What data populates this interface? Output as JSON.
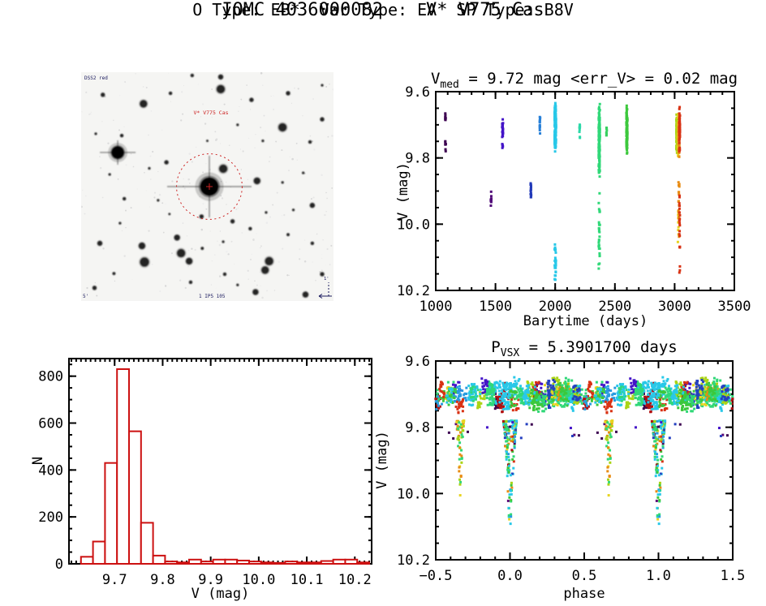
{
  "page": {
    "title": "IOMC 4036000082    V* V775 Cas",
    "subtitle": "O Type: EB*  Var Type: EA  SP Type: B8V"
  },
  "colors": {
    "axis": "#000000",
    "background": "#ffffff",
    "histogram_red": "#cc1111",
    "finder_circle_red": "#cc2222",
    "finder_navy": "#1a1a5e"
  },
  "chart_data": [
    {
      "id": "finding_chart",
      "type": "starfield-image",
      "label_survey": "DSS2 red",
      "label_target": "V* V775 Cas",
      "label_bottom": "1 IP5 105",
      "label_corner": "5'",
      "label_compass": "1'",
      "circle": {
        "cx": 0.508,
        "cy": 0.5,
        "r_frac": 0.13
      },
      "bright_stars": [
        {
          "x": 0.145,
          "y": 0.351,
          "r": 7.5,
          "hspike": 22,
          "vspike": 15
        },
        {
          "x": 0.508,
          "y": 0.5,
          "r": 11,
          "hspike": 52,
          "vspike": 38
        }
      ],
      "stars": [
        [
          0.086,
          0.099,
          2.5
        ],
        [
          0.247,
          0.138,
          4.5
        ],
        [
          0.354,
          0.092,
          2
        ],
        [
          0.44,
          0.014,
          2
        ],
        [
          0.553,
          0.021,
          3
        ],
        [
          0.553,
          0.074,
          5
        ],
        [
          0.675,
          0.121,
          2.5
        ],
        [
          0.82,
          0.092,
          2.5
        ],
        [
          0.955,
          0.057,
          1.5
        ],
        [
          0.955,
          0.206,
          2.5
        ],
        [
          0.798,
          0.241,
          5
        ],
        [
          0.907,
          0.305,
          2
        ],
        [
          0.058,
          0.269,
          1.5
        ],
        [
          0.161,
          0.277,
          2
        ],
        [
          0.113,
          0.447,
          1.5
        ],
        [
          0.338,
          0.394,
          2.5
        ],
        [
          0.563,
          0.422,
          5
        ],
        [
          0.697,
          0.475,
          4
        ],
        [
          0.798,
          0.482,
          1.5
        ],
        [
          0.916,
          0.582,
          3
        ],
        [
          0.171,
          0.553,
          2
        ],
        [
          0.305,
          0.56,
          1.5
        ],
        [
          0.477,
          0.631,
          2.5
        ],
        [
          0.6,
          0.652,
          2.5
        ],
        [
          0.67,
          0.684,
          2
        ],
        [
          0.733,
          0.613,
          1.5
        ],
        [
          0.154,
          0.66,
          1.5
        ],
        [
          0.074,
          0.748,
          3
        ],
        [
          0.241,
          0.759,
          4
        ],
        [
          0.38,
          0.723,
          3.5
        ],
        [
          0.396,
          0.791,
          5
        ],
        [
          0.251,
          0.83,
          5.5
        ],
        [
          0.428,
          0.826,
          4
        ],
        [
          0.563,
          0.741,
          1.5
        ],
        [
          0.569,
          0.883,
          2
        ],
        [
          0.745,
          0.826,
          5
        ],
        [
          0.729,
          0.865,
          4.5
        ],
        [
          0.691,
          0.961,
          3.5
        ],
        [
          0.889,
          0.972,
          3.5
        ],
        [
          0.053,
          0.943,
          2.5
        ],
        [
          0.434,
          0.918,
          2
        ],
        [
          0.955,
          0.883,
          2.5
        ],
        [
          0.916,
          0.748,
          2
        ],
        [
          0.841,
          0.602,
          1.5
        ],
        [
          0.27,
          0.42,
          1.5
        ],
        [
          0.48,
          0.77,
          1.8
        ],
        [
          0.62,
          0.93,
          1.5
        ],
        [
          0.35,
          0.62,
          1.3
        ],
        [
          0.13,
          0.88,
          1.8
        ],
        [
          0.72,
          0.3,
          1.5
        ],
        [
          0.88,
          0.44,
          1.5
        ],
        [
          0.62,
          0.23,
          1.5
        ],
        [
          0.5,
          0.3,
          1.3
        ],
        [
          0.82,
          0.71,
          1.8
        ]
      ]
    },
    {
      "id": "lightcurve",
      "type": "scatter",
      "title_parts": {
        "pre": "V",
        "sub": "med",
        "post": " = 9.72 mag <err_V> = 0.02 mag"
      },
      "xlabel": "Barytime (days)",
      "ylabel": "V (mag)",
      "xlim": [
        1000,
        3500
      ],
      "ylim": [
        9.6,
        10.2
      ],
      "y_inverted": true,
      "xticks": {
        "values": [
          1000,
          1500,
          2000,
          2500,
          3000,
          3500
        ],
        "labels": [
          "1000",
          "1500",
          "2000",
          "2500",
          "3000",
          "3500"
        ]
      },
      "yticks": {
        "values": [
          9.6,
          9.8,
          10.0,
          10.2
        ],
        "labels": [
          "9.6",
          "9.8",
          "10.0",
          "10.2"
        ]
      },
      "x_minor": 100,
      "y_minor": 0.05,
      "clusters": [
        {
          "t": 1082,
          "w": 5,
          "color": "#3c0050",
          "segments": [
            [
              9.655,
              9.7,
              8
            ],
            [
              9.745,
              9.79,
              7
            ]
          ]
        },
        {
          "t": 1463,
          "w": 5,
          "color": "#500a78",
          "segments": [
            [
              9.895,
              9.965,
              10
            ]
          ]
        },
        {
          "t": 1559,
          "w": 9,
          "color": "#4414c8",
          "segments": [
            [
              9.68,
              9.745,
              28
            ],
            [
              9.75,
              9.785,
              6
            ]
          ]
        },
        {
          "t": 1797,
          "w": 6,
          "color": "#2038b8",
          "segments": [
            [
              9.855,
              9.925,
              13
            ]
          ]
        },
        {
          "t": 1872,
          "w": 5,
          "color": "#2880d8",
          "segments": [
            [
              9.655,
              9.745,
              13
            ]
          ]
        },
        {
          "t": 2001,
          "w": 12,
          "color": "#28c8e8",
          "segments": [
            [
              9.625,
              9.795,
              170
            ],
            [
              10.03,
              10.19,
              26
            ]
          ]
        },
        {
          "t": 2205,
          "w": 5,
          "color": "#2cd8a8",
          "segments": [
            [
              9.675,
              9.75,
              10
            ]
          ]
        },
        {
          "t": 2369,
          "w": 10,
          "color": "#30d878",
          "segments": [
            [
              9.62,
              9.875,
              150
            ],
            [
              9.9,
              10.2,
              30
            ]
          ]
        },
        {
          "t": 2430,
          "w": 5,
          "color": "#38d060",
          "segments": [
            [
              9.7,
              9.74,
              8
            ]
          ]
        },
        {
          "t": 2600,
          "w": 9,
          "color": "#3cc83c",
          "segments": [
            [
              9.63,
              9.795,
              105
            ]
          ]
        },
        {
          "t": 3018,
          "w": 7,
          "color": "#aad414",
          "segments": [
            [
              9.655,
              9.8,
              85
            ]
          ]
        },
        {
          "t": 3030,
          "w": 7,
          "color": "#e8d420",
          "segments": [
            [
              9.66,
              9.8,
              50
            ],
            [
              9.93,
              10.06,
              8
            ]
          ]
        },
        {
          "t": 3036,
          "w": 7,
          "color": "#e88c14",
          "segments": [
            [
              9.655,
              9.8,
              65
            ],
            [
              9.8,
              10.1,
              18
            ]
          ]
        },
        {
          "t": 3042,
          "w": 6,
          "color": "#d83214",
          "segments": [
            [
              9.645,
              9.79,
              58
            ],
            [
              9.82,
              10.17,
              20
            ]
          ]
        }
      ]
    },
    {
      "id": "histogram",
      "type": "bar",
      "xlabel": "V (mag)",
      "ylabel": "N",
      "xlim": [
        9.605,
        10.235
      ],
      "ylim": [
        0,
        875
      ],
      "bin_start": 9.63,
      "bin_width": 0.025,
      "counts": [
        30,
        95,
        430,
        830,
        565,
        175,
        35,
        10,
        6,
        18,
        10,
        18,
        18,
        14,
        10,
        6,
        4,
        10,
        6,
        6,
        12,
        18,
        18,
        6
      ],
      "xticks": {
        "values": [
          9.7,
          9.8,
          9.9,
          10.0,
          10.1,
          10.2
        ],
        "labels": [
          "9.7",
          "9.8",
          "9.9",
          "10.0",
          "10.1",
          "10.2"
        ]
      },
      "yticks": {
        "values": [
          0,
          200,
          400,
          600,
          800
        ],
        "labels": [
          "0",
          "200",
          "400",
          "600",
          "800"
        ]
      },
      "x_minor": 0.01,
      "y_minor": 50,
      "bar_color": "#cc1111"
    },
    {
      "id": "phase",
      "type": "scatter",
      "title_parts": {
        "pre": "P",
        "sub": "VSX",
        "post": " = 5.3901700 days"
      },
      "xlabel": "phase",
      "ylabel": "V (mag)",
      "xlim": [
        -0.5,
        1.5
      ],
      "ylim": [
        9.6,
        10.2
      ],
      "y_inverted": true,
      "xticks": {
        "values": [
          -0.5,
          0.0,
          0.5,
          1.0,
          1.5
        ],
        "labels": [
          "−0.5",
          "0.0",
          "0.5",
          "1.0",
          "1.5"
        ]
      },
      "yticks": {
        "values": [
          9.6,
          9.8,
          10.0,
          10.2
        ],
        "labels": [
          "9.6",
          "9.8",
          "10.0",
          "10.2"
        ]
      },
      "x_minor": 0.1,
      "y_minor": 0.05,
      "palette": [
        "#28c8e8",
        "#30d878",
        "#3cc83c",
        "#aad414",
        "#e8d420",
        "#e88c14",
        "#d83214",
        "#2440c0",
        "#289ce0",
        "#4414c8",
        "#5c0a78",
        "#3c0050",
        "#b01010"
      ],
      "palette_weights": [
        20,
        18,
        14,
        6,
        5,
        4,
        6,
        6,
        8,
        3,
        2,
        2,
        3
      ],
      "band": {
        "groups": 80,
        "v_center": 9.703,
        "v_min": 9.63,
        "v_max": 9.795,
        "phase_spread": 0.05,
        "v_spread": 0.05
      },
      "outliers": {
        "n": 12,
        "v_from": 9.79,
        "v_to": 9.835,
        "colors": [
          "#3c0050",
          "#4414c8",
          "#2440c0",
          "#5c0a78"
        ]
      },
      "eclipses": [
        {
          "phase": 0.0,
          "width": 0.045,
          "v_from": 9.78,
          "v_to": 10.2,
          "n": 150,
          "exp": 0.65,
          "colors": "all"
        },
        {
          "phase": 0.665,
          "width": 0.025,
          "v_from": 9.78,
          "v_to": 10.03,
          "n": 65,
          "exp": 0.8,
          "colors": [
            "#e8d420",
            "#e88c14",
            "#aad414",
            "#30d878"
          ]
        }
      ]
    }
  ]
}
